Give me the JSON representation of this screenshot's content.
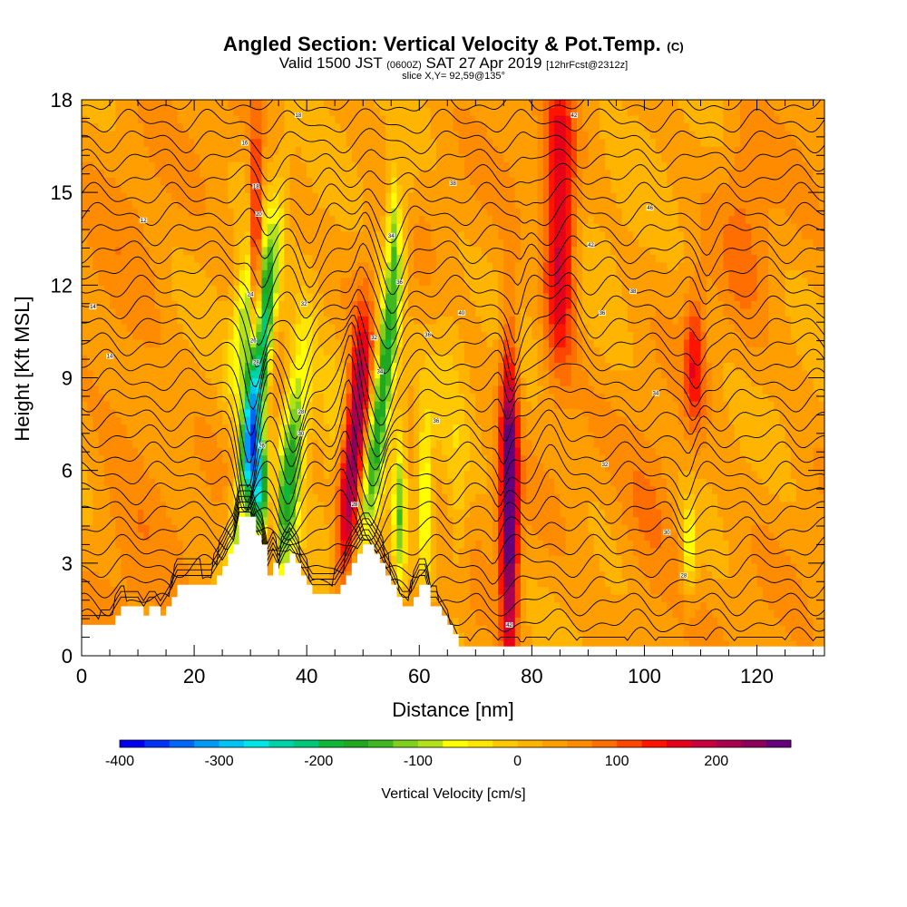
{
  "title": {
    "main": "Angled Section: Vertical Velocity & Pot.Temp.",
    "main_suffix": "(C)",
    "valid_prefix": "Valid 1500 JST",
    "valid_z": "(0600Z)",
    "valid_date": "SAT 27 Apr 2019",
    "valid_fcst": "[12hrFcst@2312z]",
    "slice": "slice X,Y= 92,59@135°"
  },
  "chart_data": {
    "type": "heatmap",
    "xlabel": "Distance [nm]",
    "ylabel": "Height [Kft MSL]",
    "xlim": [
      0,
      132
    ],
    "ylim": [
      0,
      18
    ],
    "x_ticks": [
      0,
      20,
      40,
      60,
      80,
      100,
      120
    ],
    "y_ticks": [
      0,
      3,
      6,
      9,
      12,
      15,
      18
    ],
    "colorbar": {
      "title": "Vertical Velocity [cm/s]",
      "range": [
        -400,
        275
      ],
      "step": 25,
      "tick_values": [
        -400,
        -300,
        -200,
        -100,
        0,
        100,
        200
      ],
      "colors": [
        "#0000ee",
        "#0033f5",
        "#0066f8",
        "#0099f5",
        "#00c4f2",
        "#00e6e6",
        "#00d2a8",
        "#00c878",
        "#10b838",
        "#20a820",
        "#40b820",
        "#80d020",
        "#b4e21a",
        "#ffff00",
        "#ffe600",
        "#ffc800",
        "#ffb400",
        "#ff9e00",
        "#ff8c00",
        "#ff6e00",
        "#ff4600",
        "#ff1400",
        "#e6001a",
        "#c8003c",
        "#aa0050",
        "#8c005a",
        "#64007a"
      ]
    },
    "velocity_cells": [
      {
        "x": 30.5,
        "z": 8.0,
        "sx": 1.3,
        "sz": 3.6,
        "tilt": 0.28,
        "w": -360
      },
      {
        "x": 31.5,
        "z": 5.5,
        "sx": 1.2,
        "sz": 1.2,
        "tilt": 0.0,
        "w": -280
      },
      {
        "x": 29.0,
        "z": 11.0,
        "sx": 1.5,
        "sz": 2.0,
        "tilt": 0.3,
        "w": -130
      },
      {
        "x": 31.0,
        "z": 13.0,
        "sx": 0.7,
        "sz": 2.5,
        "tilt": 0.0,
        "w": 210
      },
      {
        "x": 28.5,
        "z": 5.0,
        "sx": 0.9,
        "sz": 1.2,
        "tilt": 0.0,
        "w": 130
      },
      {
        "x": 37.0,
        "z": 6.0,
        "sx": 1.7,
        "sz": 3.0,
        "tilt": 0.25,
        "w": -210
      },
      {
        "x": 34.0,
        "z": 4.0,
        "sx": 0.8,
        "sz": 1.5,
        "tilt": 0.0,
        "w": 110
      },
      {
        "x": 48.5,
        "z": 6.8,
        "sx": 1.5,
        "sz": 2.8,
        "tilt": 0.2,
        "w": 240
      },
      {
        "x": 53.0,
        "z": 8.0,
        "sx": 1.3,
        "sz": 3.6,
        "tilt": 0.3,
        "w": -200
      },
      {
        "x": 55.5,
        "z": 14.0,
        "sx": 0.8,
        "sz": 1.4,
        "tilt": 0.0,
        "w": -110
      },
      {
        "x": 56.5,
        "z": 4.5,
        "sx": 0.8,
        "sz": 2.0,
        "tilt": 0.0,
        "w": -140
      },
      {
        "x": 61.0,
        "z": 5.0,
        "sx": 0.8,
        "sz": 2.0,
        "tilt": 0.0,
        "w": -120
      },
      {
        "x": 67.0,
        "z": 4.5,
        "sx": 1.2,
        "sz": 2.0,
        "tilt": 0.0,
        "w": -40
      },
      {
        "x": 76.0,
        "z": 5.0,
        "sx": 1.1,
        "sz": 3.6,
        "tilt": 0.0,
        "w": 280
      },
      {
        "x": 85.0,
        "z": 15.0,
        "sx": 1.9,
        "sz": 2.8,
        "tilt": 0.0,
        "w": 140
      },
      {
        "x": 85.0,
        "z": 11.5,
        "sx": 2.0,
        "sz": 2.0,
        "tilt": 0.0,
        "w": 80
      },
      {
        "x": 109.0,
        "z": 9.5,
        "sx": 1.3,
        "sz": 1.6,
        "tilt": 0.0,
        "w": 110
      },
      {
        "x": 54.0,
        "z": 11.0,
        "sx": 1.5,
        "sz": 2.0,
        "tilt": 0.0,
        "w": -60
      },
      {
        "x": 45.0,
        "z": 8.0,
        "sx": 2.5,
        "sz": 2.0,
        "tilt": 0.0,
        "w": -50
      },
      {
        "x": 65.0,
        "z": 9.0,
        "sx": 2.5,
        "sz": 3.0,
        "tilt": 0.0,
        "w": -30
      },
      {
        "x": 101.0,
        "z": 4.5,
        "sx": 4.0,
        "sz": 2.5,
        "tilt": 0.0,
        "w": 45
      },
      {
        "x": 108.0,
        "z": 3.5,
        "sx": 0.8,
        "sz": 1.0,
        "tilt": 0.0,
        "w": -110
      },
      {
        "x": 118.0,
        "z": 14.5,
        "sx": 3.0,
        "sz": 3.0,
        "tilt": 0.0,
        "w": 40
      },
      {
        "x": 8.0,
        "z": 7.0,
        "sx": 5.0,
        "sz": 6.0,
        "tilt": 0.0,
        "w": 25
      },
      {
        "x": 95.0,
        "z": 11.0,
        "sx": 8.0,
        "sz": 3.0,
        "tilt": 0.0,
        "w": -15
      }
    ],
    "terrain_kft": [
      1.0,
      1.0,
      1.0,
      1.0,
      1.0,
      1.0,
      1.3,
      1.6,
      1.6,
      1.6,
      1.6,
      1.3,
      1.6,
      1.6,
      1.3,
      1.6,
      1.9,
      2.3,
      2.3,
      2.3,
      2.3,
      2.3,
      2.3,
      2.3,
      2.6,
      2.9,
      3.3,
      3.6,
      4.5,
      4.5,
      4.5,
      3.9,
      3.6,
      2.6,
      3.0,
      2.6,
      3.0,
      3.3,
      3.0,
      2.6,
      2.3,
      2.0,
      2.0,
      2.0,
      2.0,
      2.0,
      2.3,
      2.6,
      3.0,
      3.3,
      3.6,
      3.6,
      3.3,
      3.0,
      2.6,
      2.3,
      1.9,
      1.6,
      1.6,
      1.9,
      2.3,
      2.3,
      1.6,
      1.6,
      1.3,
      1.0,
      0.7,
      0.3,
      0.3,
      0.3,
      0.3,
      0.3,
      0.3,
      0.3,
      0.3,
      0.3,
      0.3,
      0.3,
      0.3,
      0.3,
      0.3,
      0.3,
      0.3,
      0.3,
      0.3,
      0.3,
      0.3,
      0.3,
      0.3,
      0.3,
      0.3,
      0.3,
      0.3,
      0.3,
      0.3,
      0.3,
      0.3,
      0.3,
      0.3,
      0.3,
      0.3,
      0.3,
      0.3,
      0.3,
      0.3,
      0.3,
      0.3,
      0.3,
      0.3,
      0.3,
      0.3,
      0.3,
      0.3,
      0.3,
      0.3,
      0.3,
      0.3,
      0.3,
      0.3,
      0.3,
      0.3,
      0.3,
      0.3,
      0.3,
      0.3,
      0.3,
      0.3,
      0.3,
      0.3,
      0.3,
      0.3,
      0.3
    ],
    "theta_contours": {
      "levels_kft": [
        0.5,
        1.1,
        1.7,
        2.3,
        2.9,
        3.5,
        4.1,
        4.7,
        5.3,
        5.9,
        6.5,
        7.1,
        7.7,
        8.3,
        8.9,
        9.5,
        10.1,
        10.7,
        11.3,
        11.9,
        12.5,
        13.1,
        13.7,
        14.3,
        14.9,
        15.5,
        16.1,
        16.7,
        17.3,
        17.9
      ],
      "labels": [
        {
          "text": "12",
          "x": 11,
          "z": 14.1
        },
        {
          "text": "14",
          "x": 2,
          "z": 11.3
        },
        {
          "text": "14",
          "x": 5,
          "z": 9.7
        },
        {
          "text": "16",
          "x": 29,
          "z": 16.6
        },
        {
          "text": "18",
          "x": 38.5,
          "z": 17.5
        },
        {
          "text": "18",
          "x": 31,
          "z": 15.2
        },
        {
          "text": "20",
          "x": 31.5,
          "z": 14.3
        },
        {
          "text": "24",
          "x": 30,
          "z": 11.7
        },
        {
          "text": "26",
          "x": 30.5,
          "z": 10.2
        },
        {
          "text": "28",
          "x": 31,
          "z": 9.5
        },
        {
          "text": "26",
          "x": 32,
          "z": 6.8
        },
        {
          "text": "28",
          "x": 39,
          "z": 7.9
        },
        {
          "text": "30",
          "x": 39,
          "z": 7.2
        },
        {
          "text": "32",
          "x": 39.5,
          "z": 11.4
        },
        {
          "text": "28",
          "x": 48.5,
          "z": 4.9
        },
        {
          "text": "32",
          "x": 52,
          "z": 10.3
        },
        {
          "text": "34",
          "x": 53,
          "z": 9.2
        },
        {
          "text": "34",
          "x": 55,
          "z": 13.6
        },
        {
          "text": "36",
          "x": 56.5,
          "z": 12.1
        },
        {
          "text": "36",
          "x": 61.5,
          "z": 10.4
        },
        {
          "text": "36",
          "x": 63,
          "z": 7.6
        },
        {
          "text": "38",
          "x": 66,
          "z": 15.3
        },
        {
          "text": "40",
          "x": 67.5,
          "z": 11.1
        },
        {
          "text": "42",
          "x": 76,
          "z": 1.0
        },
        {
          "text": "42",
          "x": 87.5,
          "z": 17.5
        },
        {
          "text": "42",
          "x": 90.5,
          "z": 13.3
        },
        {
          "text": "38",
          "x": 98,
          "z": 11.8
        },
        {
          "text": "36",
          "x": 92.5,
          "z": 11.1
        },
        {
          "text": "34",
          "x": 102,
          "z": 8.5
        },
        {
          "text": "32",
          "x": 93,
          "z": 6.2
        },
        {
          "text": "30",
          "x": 104,
          "z": 4.0
        },
        {
          "text": "28",
          "x": 107,
          "z": 2.6
        },
        {
          "text": "46",
          "x": 101,
          "z": 14.5
        }
      ]
    }
  }
}
